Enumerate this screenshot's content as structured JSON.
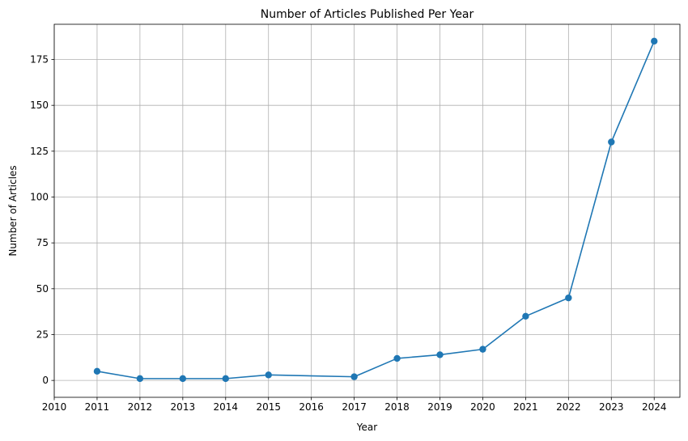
{
  "chart_data": {
    "type": "line",
    "title": "Number of Articles Published Per Year",
    "xlabel": "Year",
    "ylabel": "Number of Articles",
    "x": [
      2011,
      2012,
      2013,
      2014,
      2015,
      2017,
      2018,
      2019,
      2020,
      2021,
      2022,
      2023,
      2024
    ],
    "series": [
      {
        "values": [
          5,
          1,
          1,
          1,
          3,
          2,
          12,
          14,
          17,
          35,
          45,
          130,
          185
        ],
        "color": "#1f77b4",
        "marker": "circle"
      }
    ],
    "x_ticks": [
      "2010",
      "2011",
      "2012",
      "2013",
      "2014",
      "2015",
      "2016",
      "2017",
      "2018",
      "2019",
      "2020",
      "2021",
      "2022",
      "2023",
      "2024"
    ],
    "y_ticks": [
      "0",
      "25",
      "50",
      "75",
      "100",
      "125",
      "150",
      "175"
    ],
    "xlim": [
      2010,
      2024.6
    ],
    "ylim": [
      -9.2,
      194.2
    ],
    "grid": true,
    "grid_color": "#b0b0b0"
  }
}
